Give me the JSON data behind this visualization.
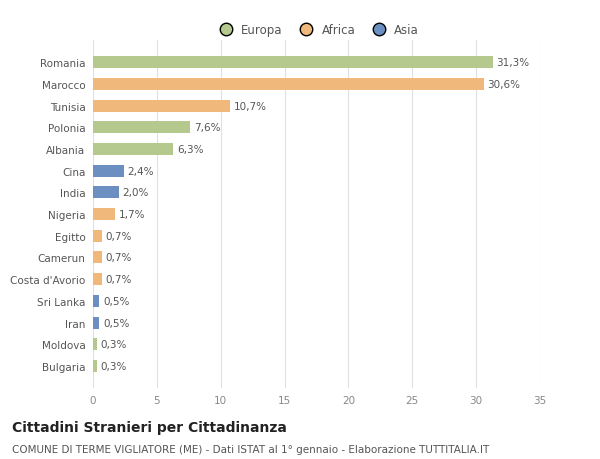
{
  "categories": [
    "Romania",
    "Marocco",
    "Tunisia",
    "Polonia",
    "Albania",
    "Cina",
    "India",
    "Nigeria",
    "Egitto",
    "Camerun",
    "Costa d'Avorio",
    "Sri Lanka",
    "Iran",
    "Moldova",
    "Bulgaria"
  ],
  "values": [
    31.3,
    30.6,
    10.7,
    7.6,
    6.3,
    2.4,
    2.0,
    1.7,
    0.7,
    0.7,
    0.7,
    0.5,
    0.5,
    0.3,
    0.3
  ],
  "labels": [
    "31,3%",
    "30,6%",
    "10,7%",
    "7,6%",
    "6,3%",
    "2,4%",
    "2,0%",
    "1,7%",
    "0,7%",
    "0,7%",
    "0,7%",
    "0,5%",
    "0,5%",
    "0,3%",
    "0,3%"
  ],
  "colors": [
    "#b5c98e",
    "#f0b87a",
    "#f0b87a",
    "#b5c98e",
    "#b5c98e",
    "#6a8fc0",
    "#6a8fc0",
    "#f0b87a",
    "#f0b87a",
    "#f0b87a",
    "#f0b87a",
    "#6a8fc0",
    "#6a8fc0",
    "#b5c98e",
    "#b5c98e"
  ],
  "legend_labels": [
    "Europa",
    "Africa",
    "Asia"
  ],
  "legend_colors": [
    "#b5c98e",
    "#f0b87a",
    "#6a8fc0"
  ],
  "title": "Cittadini Stranieri per Cittadinanza",
  "subtitle": "COMUNE DI TERME VIGLIATORE (ME) - Dati ISTAT al 1° gennaio - Elaborazione TUTTITALIA.IT",
  "xlim": [
    0,
    35
  ],
  "xticks": [
    0,
    5,
    10,
    15,
    20,
    25,
    30,
    35
  ],
  "bg_color": "#ffffff",
  "plot_bg_color": "#ffffff",
  "bar_height": 0.55,
  "title_fontsize": 10,
  "subtitle_fontsize": 7.5,
  "label_fontsize": 7.5,
  "tick_fontsize": 7.5,
  "legend_fontsize": 8.5,
  "grid_color": "#e0e0e0",
  "text_color": "#555555",
  "label_color": "#555555"
}
